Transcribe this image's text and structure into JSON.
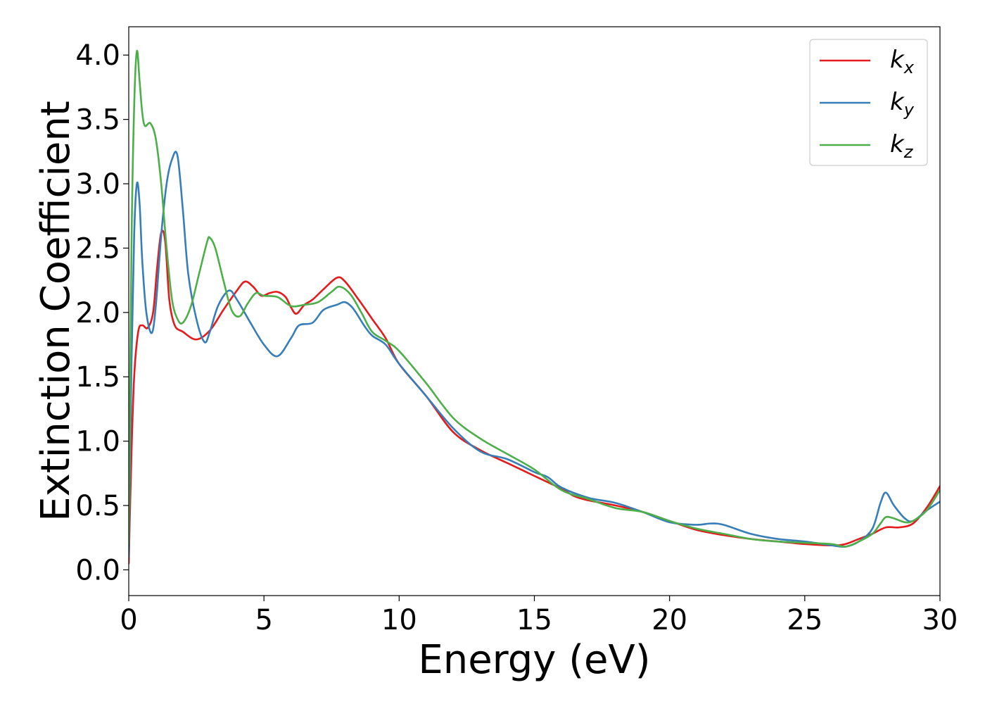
{
  "chart_data": {
    "type": "line",
    "xlabel": "Energy (eV)",
    "ylabel": "Extinction Coefficient",
    "xlim": [
      0,
      30
    ],
    "ylim": [
      -0.2,
      4.22
    ],
    "xticks": [
      0,
      5,
      10,
      15,
      20,
      25,
      30
    ],
    "yticks": [
      0.0,
      0.5,
      1.0,
      1.5,
      2.0,
      2.5,
      3.0,
      3.5,
      4.0
    ],
    "xtick_labels": [
      "0",
      "5",
      "10",
      "15",
      "20",
      "25",
      "30"
    ],
    "ytick_labels": [
      "0.0",
      "0.5",
      "1.0",
      "1.5",
      "2.0",
      "2.5",
      "3.0",
      "3.5",
      "4.0"
    ],
    "grid": false,
    "legend_position": "top-right",
    "series": [
      {
        "name": "kx",
        "label_main": "k",
        "label_sub": "x",
        "color": "#e41a1c",
        "x": [
          0.0,
          0.1,
          0.2,
          0.35,
          0.5,
          0.7,
          0.9,
          1.05,
          1.2,
          1.35,
          1.5,
          1.7,
          2.0,
          2.5,
          3.0,
          3.5,
          4.0,
          4.3,
          4.6,
          4.9,
          5.2,
          5.5,
          5.8,
          6.0,
          6.2,
          6.5,
          6.8,
          7.2,
          7.7,
          8.0,
          8.5,
          9.0,
          9.5,
          10.0,
          11.0,
          12.0,
          13.0,
          14.0,
          15.0,
          16.0,
          16.5,
          17.0,
          18.0,
          19.0,
          20.0,
          21.0,
          22.0,
          23.0,
          24.0,
          25.0,
          26.0,
          26.5,
          27.0,
          27.5,
          28.0,
          28.5,
          29.0,
          29.5,
          30.0
        ],
        "y": [
          0.05,
          0.9,
          1.5,
          1.85,
          1.9,
          1.88,
          2.0,
          2.35,
          2.62,
          2.55,
          2.1,
          1.9,
          1.85,
          1.79,
          1.86,
          2.02,
          2.17,
          2.24,
          2.2,
          2.13,
          2.15,
          2.16,
          2.12,
          2.04,
          1.99,
          2.06,
          2.1,
          2.18,
          2.27,
          2.24,
          2.1,
          1.95,
          1.8,
          1.6,
          1.35,
          1.07,
          0.93,
          0.83,
          0.73,
          0.63,
          0.57,
          0.54,
          0.5,
          0.45,
          0.38,
          0.31,
          0.27,
          0.24,
          0.22,
          0.2,
          0.19,
          0.2,
          0.24,
          0.28,
          0.33,
          0.33,
          0.36,
          0.48,
          0.65
        ]
      },
      {
        "name": "ky",
        "label_main": "k",
        "label_sub": "y",
        "color": "#377eb8",
        "x": [
          0.0,
          0.1,
          0.2,
          0.3,
          0.4,
          0.5,
          0.65,
          0.85,
          1.0,
          1.2,
          1.4,
          1.6,
          1.8,
          2.0,
          2.2,
          2.5,
          2.8,
          3.0,
          3.3,
          3.7,
          4.0,
          4.5,
          5.0,
          5.5,
          6.0,
          6.3,
          6.8,
          7.2,
          7.7,
          8.0,
          8.3,
          8.7,
          9.0,
          9.5,
          10.0,
          11.0,
          12.0,
          13.0,
          14.0,
          15.0,
          15.5,
          16.0,
          17.0,
          18.0,
          19.0,
          20.0,
          21.0,
          21.5,
          22.0,
          23.0,
          24.0,
          25.0,
          26.0,
          26.5,
          27.0,
          27.5,
          27.8,
          28.0,
          28.3,
          28.7,
          29.0,
          29.5,
          30.0
        ],
        "y": [
          0.1,
          1.6,
          2.6,
          3.0,
          2.85,
          2.4,
          2.0,
          1.84,
          2.05,
          2.6,
          3.0,
          3.19,
          3.22,
          2.8,
          2.3,
          1.95,
          1.77,
          1.85,
          2.05,
          2.17,
          2.1,
          1.92,
          1.75,
          1.66,
          1.8,
          1.9,
          1.92,
          2.02,
          2.06,
          2.08,
          2.03,
          1.9,
          1.82,
          1.75,
          1.6,
          1.35,
          1.1,
          0.92,
          0.86,
          0.76,
          0.72,
          0.64,
          0.56,
          0.52,
          0.45,
          0.37,
          0.35,
          0.36,
          0.35,
          0.28,
          0.24,
          0.22,
          0.19,
          0.18,
          0.22,
          0.32,
          0.52,
          0.6,
          0.5,
          0.4,
          0.38,
          0.46,
          0.53
        ]
      },
      {
        "name": "kz",
        "label_main": "k",
        "label_sub": "z",
        "color": "#4daf4a",
        "x": [
          0.0,
          0.1,
          0.2,
          0.3,
          0.4,
          0.5,
          0.6,
          0.8,
          1.0,
          1.2,
          1.4,
          1.6,
          1.8,
          2.0,
          2.3,
          2.6,
          2.9,
          3.0,
          3.2,
          3.5,
          3.8,
          4.1,
          4.4,
          4.7,
          5.0,
          5.5,
          6.0,
          6.5,
          7.0,
          7.5,
          7.8,
          8.2,
          8.6,
          9.0,
          9.5,
          10.0,
          11.0,
          12.0,
          13.0,
          14.0,
          15.0,
          16.0,
          17.0,
          18.0,
          19.0,
          20.0,
          21.0,
          22.0,
          23.0,
          24.0,
          25.0,
          26.0,
          26.5,
          27.0,
          27.5,
          27.8,
          28.0,
          28.3,
          28.7,
          29.0,
          29.5,
          30.0
        ],
        "y": [
          0.2,
          2.5,
          3.6,
          4.03,
          3.8,
          3.55,
          3.45,
          3.47,
          3.35,
          3.0,
          2.5,
          2.1,
          1.95,
          1.92,
          2.05,
          2.3,
          2.55,
          2.58,
          2.5,
          2.25,
          2.02,
          1.97,
          2.07,
          2.15,
          2.13,
          2.12,
          2.05,
          2.06,
          2.08,
          2.16,
          2.2,
          2.14,
          2.0,
          1.85,
          1.78,
          1.7,
          1.45,
          1.18,
          1.02,
          0.9,
          0.78,
          0.62,
          0.55,
          0.48,
          0.45,
          0.38,
          0.32,
          0.28,
          0.24,
          0.22,
          0.21,
          0.2,
          0.18,
          0.22,
          0.28,
          0.36,
          0.41,
          0.4,
          0.37,
          0.38,
          0.46,
          0.62
        ]
      }
    ]
  }
}
